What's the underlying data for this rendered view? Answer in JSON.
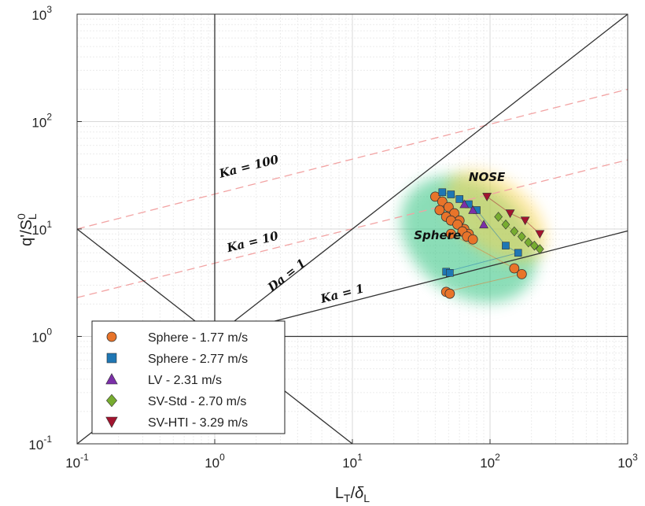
{
  "chart_data": {
    "type": "scatter",
    "title": "",
    "xlabel": {
      "base": "L",
      "base_sub": "T",
      "slash": "/",
      "greek": "δ",
      "greek_sub": "L"
    },
    "ylabel": {
      "base": "q'/S",
      "sup": "0",
      "sub": "L"
    },
    "x_scale": "log",
    "y_scale": "log",
    "xlim": [
      0.1,
      1000
    ],
    "ylim": [
      0.1,
      1000
    ],
    "x_ticks": [
      {
        "value": 0.1,
        "mant": "10",
        "exp": "-1"
      },
      {
        "value": 1,
        "mant": "10",
        "exp": "0"
      },
      {
        "value": 10,
        "mant": "10",
        "exp": "1"
      },
      {
        "value": 100,
        "mant": "10",
        "exp": "2"
      },
      {
        "value": 1000,
        "mant": "10",
        "exp": "3"
      }
    ],
    "y_ticks": [
      {
        "value": 0.1,
        "mant": "10",
        "exp": "-1"
      },
      {
        "value": 1,
        "mant": "10",
        "exp": "0"
      },
      {
        "value": 10,
        "mant": "10",
        "exp": "1"
      },
      {
        "value": 100,
        "mant": "10",
        "exp": "2"
      },
      {
        "value": 1000,
        "mant": "10",
        "exp": "3"
      }
    ],
    "grid": true,
    "legend_position": "bottom-left",
    "regime_lines": [
      {
        "label": "Ka = 100",
        "style": "dashed",
        "color": "#f2a3a3",
        "points": [
          [
            0.1,
            10
          ],
          [
            1000,
            200
          ]
        ],
        "label_at": [
          1.1,
          30
        ]
      },
      {
        "label": "Ka = 10",
        "style": "dashed",
        "color": "#f2a3a3",
        "points": [
          [
            0.1,
            2.3
          ],
          [
            1000,
            44
          ]
        ],
        "label_at": [
          1.25,
          6.1
        ]
      },
      {
        "label": "Da = 1",
        "style": "solid",
        "color": "#333333",
        "points": [
          [
            0.1,
            0.1
          ],
          [
            1000,
            1000
          ]
        ],
        "label_at": [
          2.6,
          2.6
        ]
      },
      {
        "label": "Ka = 1",
        "style": "solid",
        "color": "#333333",
        "points": [
          [
            1,
            1
          ],
          [
            1000,
            9.6
          ]
        ],
        "label_at": [
          6,
          2.05
        ]
      },
      {
        "label": "",
        "style": "solid",
        "color": "#333333",
        "points": [
          [
            0.1,
            10
          ],
          [
            10,
            0.1
          ]
        ]
      },
      {
        "label": "",
        "style": "solid",
        "color": "#333333",
        "points": [
          [
            1,
            1
          ],
          [
            1000,
            1
          ]
        ]
      },
      {
        "label": "",
        "style": "solid",
        "color": "#333333",
        "points": [
          [
            1,
            1
          ],
          [
            1,
            1000
          ]
        ]
      }
    ],
    "regions": [
      {
        "label": "Sphere",
        "color": "#2ec27e",
        "center": [
          70,
          8
        ],
        "label_at": [
          28,
          8
        ]
      },
      {
        "label": "NOSE",
        "color": "#ffd24a",
        "center": [
          110,
          13
        ],
        "label_at": [
          70,
          28
        ]
      }
    ],
    "series": [
      {
        "name": "Sphere - 1.77 m/s",
        "marker": "circle",
        "color": "#e8742a",
        "points": [
          [
            40,
            20
          ],
          [
            45,
            18
          ],
          [
            50,
            16
          ],
          [
            55,
            14
          ],
          [
            60,
            12
          ],
          [
            65,
            10
          ],
          [
            70,
            9
          ],
          [
            43,
            15
          ],
          [
            48,
            13
          ],
          [
            52,
            12
          ],
          [
            58,
            11
          ],
          [
            63,
            9.5
          ],
          [
            68,
            8.5
          ],
          [
            75,
            8
          ],
          [
            52,
            9
          ],
          [
            150,
            4.3
          ],
          [
            170,
            3.8
          ],
          [
            48,
            2.6
          ],
          [
            51,
            2.5
          ]
        ]
      },
      {
        "name": "Sphere - 2.77 m/s",
        "marker": "square",
        "color": "#1f77b4",
        "points": [
          [
            45,
            22
          ],
          [
            52,
            21
          ],
          [
            60,
            19
          ],
          [
            70,
            17
          ],
          [
            80,
            15
          ],
          [
            130,
            7
          ],
          [
            160,
            6
          ],
          [
            48,
            4
          ],
          [
            51,
            3.9
          ]
        ]
      },
      {
        "name": "LV - 2.31 m/s",
        "marker": "triangle-up",
        "color": "#7b2fa8",
        "points": [
          [
            65,
            17
          ],
          [
            75,
            15
          ],
          [
            90,
            11
          ]
        ]
      },
      {
        "name": "SV-Std - 2.70 m/s",
        "marker": "diamond",
        "color": "#77ac30",
        "points": [
          [
            115,
            13
          ],
          [
            130,
            11
          ],
          [
            150,
            9.5
          ],
          [
            170,
            8.5
          ],
          [
            190,
            7.5
          ],
          [
            210,
            7
          ],
          [
            230,
            6.5
          ]
        ]
      },
      {
        "name": "SV-HTI - 3.29 m/s",
        "marker": "triangle-down",
        "color": "#a2142f",
        "points": [
          [
            95,
            20
          ],
          [
            140,
            14
          ],
          [
            180,
            12
          ],
          [
            230,
            9
          ]
        ]
      }
    ]
  }
}
